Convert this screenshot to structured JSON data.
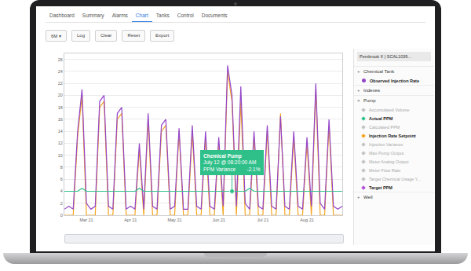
{
  "tabs": [
    "Dashboard",
    "Summary",
    "Alarms",
    "Chart",
    "Tanks",
    "Control",
    "Documents"
  ],
  "active_tab": "Chart",
  "toolbar": [
    "6M ▾",
    "Log",
    "Clear",
    "Reset",
    "Export"
  ],
  "chart_data": {
    "type": "line",
    "categories": [
      null,
      null,
      null,
      null,
      null,
      "Mar 21",
      null,
      null,
      null,
      null,
      null,
      null,
      null,
      null,
      null,
      "Apr 21",
      null,
      null,
      null,
      null,
      null,
      null,
      null,
      null,
      null,
      "May 21",
      null,
      null,
      null,
      null,
      null,
      null,
      null,
      null,
      null,
      "Jun 21",
      null,
      null,
      null,
      null,
      null,
      null,
      null,
      null,
      null,
      "Jul 21",
      null,
      null,
      null,
      null,
      null,
      null,
      null,
      null,
      null,
      "Aug 21",
      null,
      null,
      null,
      null,
      null,
      null,
      null,
      null
    ],
    "series": [
      {
        "name": "Injection Rate Setpoint",
        "color": "#f5a623",
        "line_style": "solid",
        "values": [
          0,
          0,
          0,
          13,
          20,
          0,
          0,
          0,
          18,
          19,
          0,
          0,
          16,
          17,
          0,
          0,
          0,
          11,
          0,
          16,
          0,
          0,
          14,
          15,
          0,
          0,
          14,
          0,
          0,
          14,
          0,
          0,
          13,
          0,
          0,
          12,
          0,
          24,
          19,
          0,
          19,
          0,
          0,
          13,
          0,
          0,
          14,
          0,
          0,
          17,
          0,
          0,
          13,
          0,
          0,
          12,
          0,
          21,
          0,
          0,
          15,
          0,
          0,
          0
        ]
      },
      {
        "name": "Observed Injection Rate",
        "color": "#9446c9",
        "line_style": "solid",
        "values": [
          1,
          1.5,
          1,
          14,
          21,
          2,
          1,
          1.5,
          19,
          20,
          1.5,
          1,
          17,
          18,
          1,
          1.5,
          1,
          12,
          1,
          17,
          1.5,
          1,
          15,
          16,
          1,
          1.5,
          14.5,
          1,
          1,
          15,
          1.5,
          1,
          14,
          1.5,
          1,
          13,
          1.5,
          25,
          20,
          1.5,
          21.5,
          2,
          1,
          14,
          1.5,
          1,
          15,
          1.5,
          1,
          16.5,
          1.5,
          1,
          14,
          1.5,
          1,
          13,
          1.5,
          22,
          2,
          1,
          16,
          1.5,
          1,
          1.5
        ]
      },
      {
        "name": "Actual PPM",
        "color": "#2fc08a",
        "line_style": "solid",
        "values": [
          4,
          4,
          4,
          4,
          4.5,
          4,
          4,
          4,
          4,
          4,
          4,
          4,
          4,
          4,
          4,
          4,
          4,
          4.5,
          4,
          4,
          4,
          4,
          4,
          4,
          4,
          4,
          4,
          4,
          4,
          4,
          4,
          4,
          4,
          4,
          4,
          4,
          4,
          4,
          4,
          4,
          4,
          4,
          4.5,
          4,
          4,
          4,
          4,
          4,
          4,
          4,
          4,
          4,
          4,
          4,
          4,
          4,
          4,
          4,
          4,
          4,
          4,
          4,
          4,
          4
        ]
      }
    ],
    "ylim": [
      0,
      27
    ],
    "yticks": [
      0,
      2,
      4,
      6,
      8,
      10,
      12,
      14,
      16,
      18,
      20,
      22,
      24,
      26
    ],
    "grid": true,
    "tooltip": {
      "title": "Chemical Pump",
      "date": "July 12 @ 08:20:00 AM",
      "label": "PPM Variance",
      "value": "-2.1%",
      "series": "Actual PPM",
      "point": 38,
      "color": "#2fc08a"
    }
  },
  "sidebar": {
    "selector": "Pembrook X | SCAL1039...",
    "groups": [
      {
        "symbol": "+",
        "name": "Chemical Tank",
        "items": [
          {
            "label": "Observed Injection Rate",
            "active": true,
            "color": "#9446c9",
            "marker": "circle"
          }
        ]
      },
      {
        "symbol": "+",
        "name": "Indexes",
        "items": []
      },
      {
        "symbol": "×",
        "name": "Pump",
        "items": [
          {
            "label": "Accumulated Volume",
            "active": false,
            "color": "#c4c4c4",
            "marker": "diamond"
          },
          {
            "label": "Actual PPM",
            "active": true,
            "color": "#2fc08a",
            "marker": "diamond"
          },
          {
            "label": "Calculated PPM",
            "active": false,
            "color": "#c4c4c4",
            "marker": "diamond"
          },
          {
            "label": "Injection Rate Setpoint",
            "active": true,
            "color": "#f5a623",
            "marker": "diamond"
          },
          {
            "label": "Injection Variance",
            "active": false,
            "color": "#c4c4c4",
            "marker": "diamond"
          },
          {
            "label": "Max Pump Output",
            "active": false,
            "color": "#c4c4c4",
            "marker": "diamond"
          },
          {
            "label": "Meter Analog Output",
            "active": false,
            "color": "#c4c4c4",
            "marker": "diamond"
          },
          {
            "label": "Meter Flow Rate",
            "active": false,
            "color": "#c4c4c4",
            "marker": "diamond"
          },
          {
            "label": "Target Chemical Usage Y...",
            "active": false,
            "color": "#c4c4c4",
            "marker": "diamond"
          },
          {
            "label": "Target PPM",
            "active": true,
            "color": "#b14fd6",
            "marker": "diamond"
          }
        ]
      },
      {
        "symbol": "+",
        "name": "Well",
        "items": []
      }
    ]
  }
}
